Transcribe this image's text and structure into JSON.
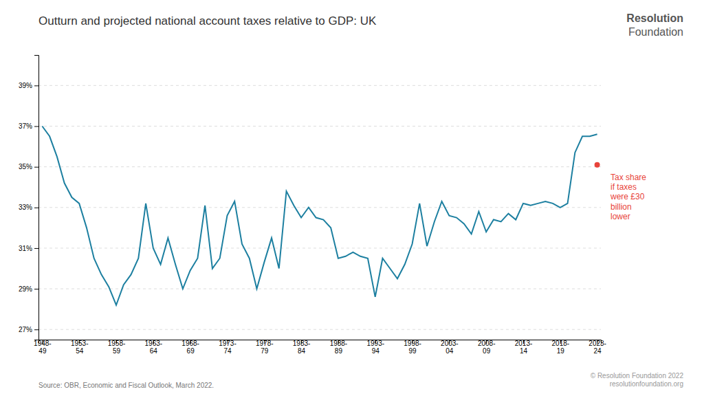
{
  "chart_data": {
    "type": "line",
    "title": "Outturn and projected national account taxes relative to GDP: UK",
    "source": "Source: OBR, Economic and Fiscal Outlook, March 2022.",
    "copyright": "© Resolution Foundation 2022\nresolutionfoundation.org",
    "logo": [
      "Resolution",
      "Foundation"
    ],
    "color": "#1c7fa0",
    "categories": [
      "1948-\n49",
      null,
      null,
      null,
      null,
      "1953-\n54",
      null,
      null,
      null,
      null,
      "1958-\n59",
      null,
      null,
      null,
      null,
      "1963-\n64",
      null,
      null,
      null,
      null,
      "1968-\n69",
      null,
      null,
      null,
      null,
      "1973-\n74",
      null,
      null,
      null,
      null,
      "1978-\n79",
      null,
      null,
      null,
      null,
      "1983-\n84",
      null,
      null,
      null,
      null,
      "1988-\n89",
      null,
      null,
      null,
      null,
      "1993-\n94",
      null,
      null,
      null,
      null,
      "1998-\n99",
      null,
      null,
      null,
      null,
      "2003-\n04",
      null,
      null,
      null,
      null,
      "2008-\n09",
      null,
      null,
      null,
      null,
      "2013-\n14",
      null,
      null,
      null,
      null,
      "2018-\n19",
      null,
      null,
      null,
      null,
      "2023-\n24"
    ],
    "values": [
      37.0,
      36.5,
      35.5,
      34.2,
      33.5,
      33.2,
      32.0,
      30.5,
      29.7,
      29.1,
      28.2,
      29.2,
      29.7,
      30.5,
      33.2,
      31.0,
      30.2,
      31.5,
      30.2,
      29.0,
      29.9,
      30.5,
      33.1,
      30.0,
      30.5,
      32.6,
      33.3,
      31.2,
      30.5,
      29.0,
      30.3,
      31.5,
      30.0,
      33.8,
      33.1,
      32.5,
      33.0,
      32.5,
      32.4,
      32.0,
      30.5,
      30.6,
      30.8,
      30.6,
      30.5,
      28.6,
      30.5,
      30.0,
      29.5,
      30.2,
      31.2,
      33.2,
      31.1,
      32.3,
      33.3,
      32.6,
      32.5,
      32.2,
      31.7,
      32.8,
      31.8,
      32.4,
      32.3,
      32.7,
      32.4,
      33.2,
      33.1,
      33.2,
      33.3,
      33.2,
      33.0,
      33.2,
      35.7,
      36.5,
      36.5,
      36.6
    ],
    "ylim": [
      26.5,
      40.5
    ],
    "yticks": [
      {
        "value": 27,
        "label": "27%"
      },
      {
        "value": 29,
        "label": "29%"
      },
      {
        "value": 31,
        "label": "31%"
      },
      {
        "value": 33,
        "label": "33%"
      },
      {
        "value": 35,
        "label": "35%"
      },
      {
        "value": 37,
        "label": "37%"
      },
      {
        "value": 39,
        "label": "39%"
      }
    ],
    "grid": true,
    "annotations": [
      {
        "text": "Tax share\nif taxes\nwere £30\nbillion\nlower",
        "value": 35.1,
        "color": "#e8433a"
      }
    ]
  }
}
